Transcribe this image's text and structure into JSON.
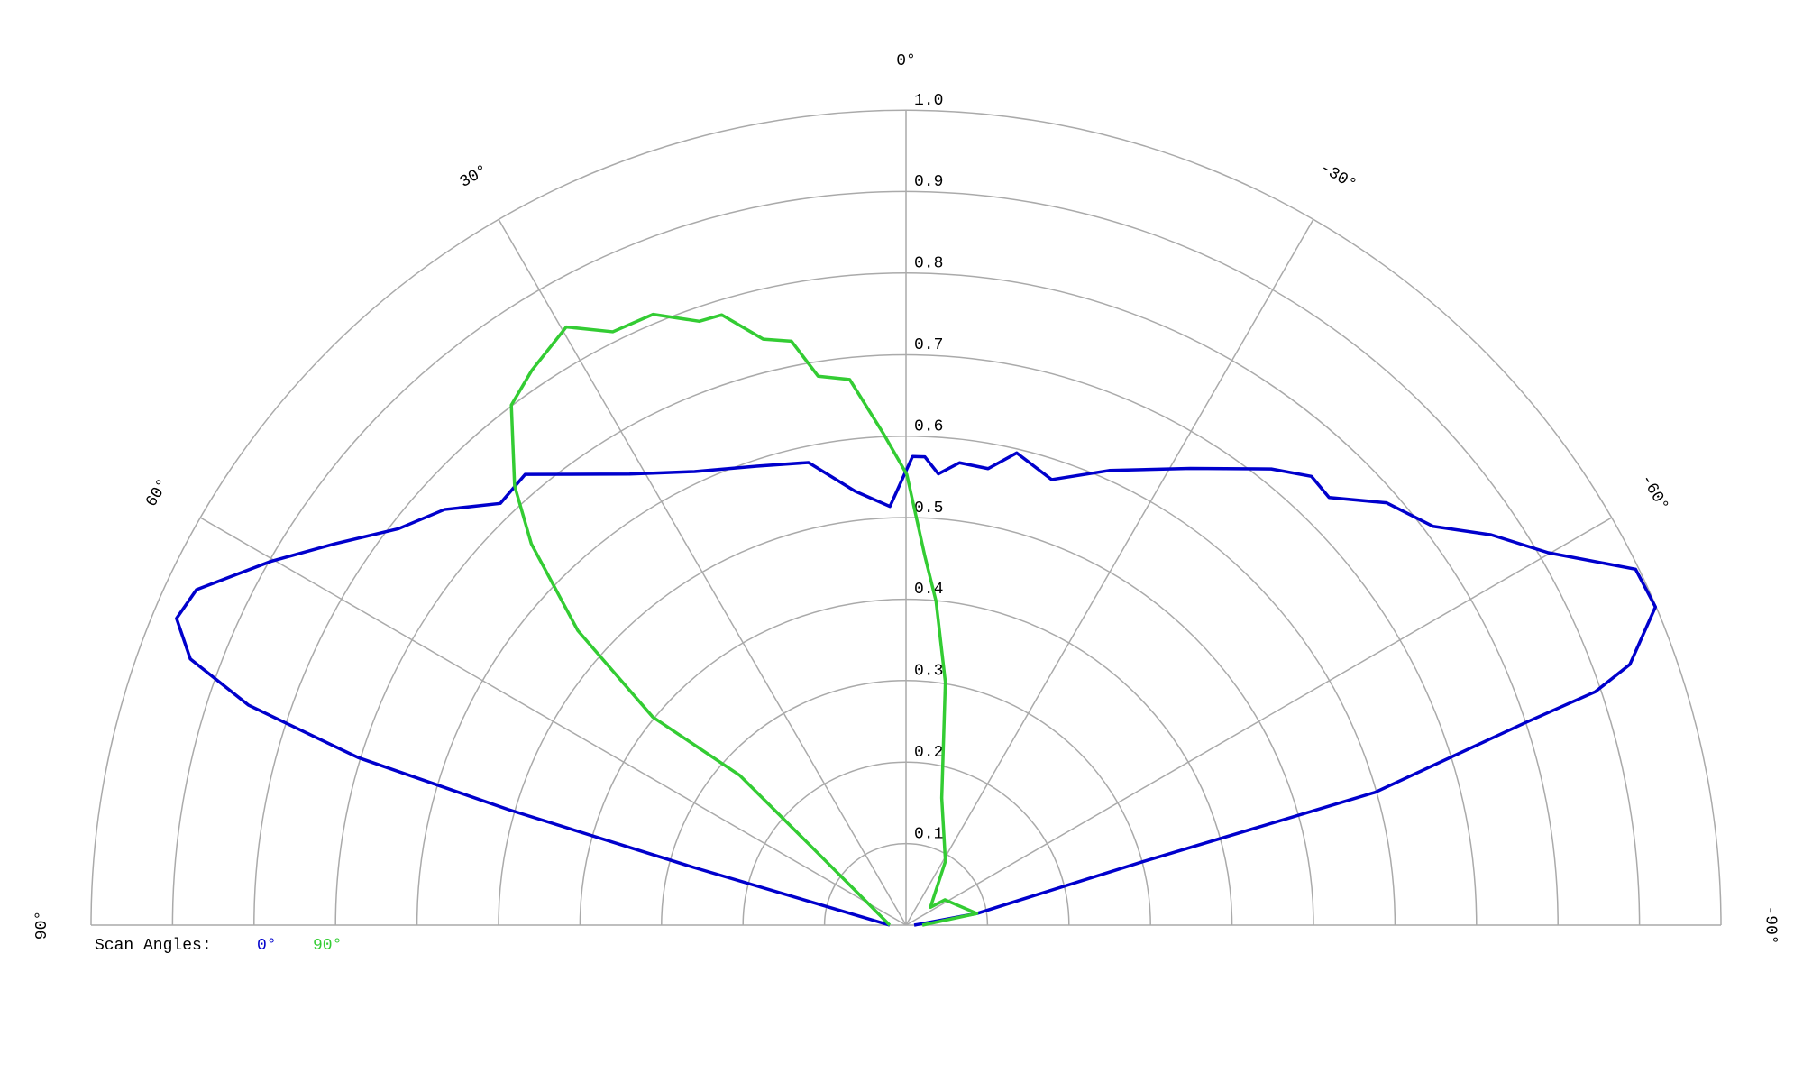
{
  "chart_data": {
    "type": "polar",
    "legend_title": "Scan Angles:",
    "rlim": [
      0,
      1
    ],
    "rticks": [
      0.1,
      0.2,
      0.3,
      0.4,
      0.5,
      0.6,
      0.7,
      0.8,
      0.9,
      {
        "value": 1,
        "label": "1.0"
      }
    ],
    "thetalim": [
      -90,
      90
    ],
    "thetaticks": [
      {
        "value": 90,
        "label": "90°"
      },
      {
        "value": 60,
        "label": "60°"
      },
      {
        "value": 30,
        "label": "30°"
      },
      {
        "value": 0,
        "label": "0°"
      },
      {
        "value": -30,
        "label": "-30°"
      },
      {
        "value": -60,
        "label": "-60°"
      },
      {
        "value": -90,
        "label": "-90°"
      }
    ],
    "grid": true,
    "series": [
      {
        "name": "0°",
        "color": "#0000cc",
        "x": [
          90,
          74.8,
          73.8,
          73,
          71.5,
          69.6,
          67.2,
          64.7,
          60.2,
          56.3,
          52,
          48,
          43.9,
          40.2,
          31.5,
          25,
          18,
          11.9,
          6.7,
          2.2,
          -0.8,
          -2.3,
          -4.1,
          -6.6,
          -10.2,
          -13.2,
          -18.1,
          -24.1,
          -31.9,
          -38.7,
          -42.1,
          -44.7,
          -48.7,
          -52.9,
          -56.3,
          -59.9,
          -64,
          -67,
          -70.2,
          -71.3,
          -71.9,
          -74.2,
          -75,
          -80.7,
          -90
        ],
        "values": [
          0.02,
          0.27,
          0.508,
          0.703,
          0.851,
          0.937,
          0.971,
          0.963,
          0.898,
          0.843,
          0.79,
          0.762,
          0.718,
          0.724,
          0.649,
          0.614,
          0.592,
          0.58,
          0.536,
          0.514,
          0.575,
          0.575,
          0.555,
          0.571,
          0.569,
          0.595,
          0.575,
          0.611,
          0.66,
          0.717,
          0.742,
          0.738,
          0.785,
          0.811,
          0.863,
          0.911,
          0.996,
          0.999,
          0.944,
          0.893,
          0.8,
          0.598,
          0.302,
          0.088,
          0.01
        ]
      },
      {
        "name": "90°",
        "color": "#33cc33",
        "x": [
          90,
          57.3,
          50.2,
          48,
          50.6,
          48.1,
          44.5,
          41.7,
          37.2,
          34,
          29.6,
          26.3,
          22.5,
          18.9,
          16.8,
          13.7,
          11.1,
          9.1,
          5.9,
          2.6,
          -0.1,
          -2.9,
          -5.3,
          -9.2,
          -15.7,
          -31.7,
          -54,
          -57,
          -80.7,
          -90
        ],
        "values": [
          0.02,
          0.066,
          0.155,
          0.275,
          0.402,
          0.541,
          0.656,
          0.722,
          0.801,
          0.821,
          0.844,
          0.812,
          0.811,
          0.783,
          0.782,
          0.74,
          0.73,
          0.682,
          0.673,
          0.603,
          0.553,
          0.454,
          0.399,
          0.302,
          0.162,
          0.092,
          0.037,
          0.057,
          0.088,
          0.02
        ]
      }
    ]
  }
}
